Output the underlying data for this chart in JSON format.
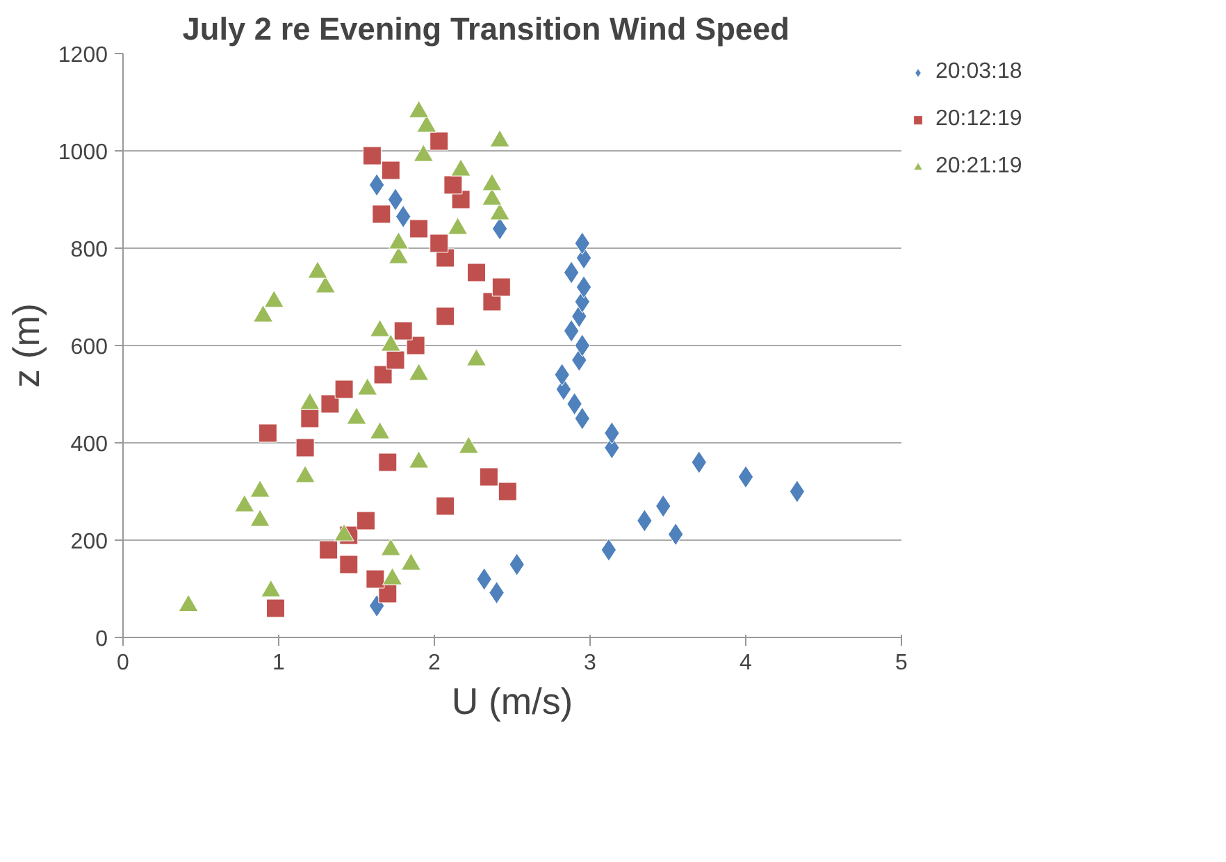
{
  "chart_data": {
    "type": "scatter",
    "title": "July 2      re Evening Transition  Wind Speed",
    "xlabel": "U (m/s)",
    "ylabel": "z (m)",
    "xlim": [
      0,
      5
    ],
    "xticks": [
      0,
      1,
      2,
      3,
      4,
      5
    ],
    "ylim": [
      0,
      1200
    ],
    "yticks": [
      0,
      200,
      400,
      600,
      800,
      1000,
      1200
    ],
    "grid": "y",
    "legend": "right",
    "series": [
      {
        "name": "20:03:18",
        "color": "#4f81bd",
        "marker": "diamond",
        "x": [
          1.63,
          2.32,
          2.4,
          2.53,
          3.12,
          3.35,
          3.47,
          3.55,
          3.7,
          4.0,
          4.33,
          3.14,
          3.14,
          2.95,
          2.9,
          2.83,
          2.82,
          2.93,
          2.95,
          2.88,
          2.93,
          2.95,
          2.96,
          2.88,
          2.96,
          2.95,
          2.42,
          1.8,
          1.75,
          1.63
        ],
        "values": [
          65,
          120,
          92,
          150,
          180,
          240,
          270,
          212,
          360,
          330,
          300,
          390,
          420,
          450,
          480,
          510,
          540,
          570,
          600,
          630,
          660,
          690,
          720,
          750,
          780,
          810,
          840,
          865,
          900,
          930
        ]
      },
      {
        "name": "20:12:19",
        "color": "#c0504d",
        "marker": "square",
        "x": [
          0.98,
          1.7,
          1.62,
          1.45,
          1.32,
          1.45,
          1.56,
          2.07,
          2.47,
          2.35,
          1.7,
          1.17,
          0.93,
          1.2,
          1.33,
          1.42,
          1.67,
          1.75,
          1.88,
          1.8,
          2.07,
          2.37,
          2.43,
          2.27,
          2.07,
          2.03,
          1.9,
          1.66,
          2.17,
          2.12,
          1.72,
          1.6,
          2.03
        ],
        "values": [
          60,
          90,
          120,
          150,
          180,
          210,
          240,
          270,
          300,
          330,
          360,
          390,
          420,
          450,
          480,
          510,
          540,
          570,
          600,
          630,
          660,
          690,
          720,
          750,
          780,
          810,
          840,
          870,
          900,
          930,
          960,
          990,
          1020
        ]
      },
      {
        "name": "20:21:19",
        "color": "#9bbb59",
        "marker": "triangle",
        "x": [
          0.42,
          0.95,
          1.73,
          1.85,
          1.72,
          1.42,
          0.88,
          0.78,
          0.88,
          1.17,
          1.9,
          2.22,
          1.65,
          1.5,
          1.2,
          1.57,
          1.9,
          2.27,
          1.72,
          1.65,
          0.9,
          0.97,
          1.3,
          1.25,
          1.77,
          1.77,
          2.15,
          2.42,
          2.37,
          2.37,
          2.17,
          1.93,
          2.42,
          1.95,
          1.9
        ],
        "values": [
          65,
          95,
          120,
          150,
          180,
          210,
          240,
          270,
          300,
          330,
          360,
          390,
          420,
          450,
          480,
          510,
          540,
          570,
          600,
          630,
          660,
          690,
          720,
          750,
          780,
          810,
          840,
          870,
          900,
          930,
          960,
          990,
          1020,
          1050,
          1080
        ]
      }
    ]
  }
}
